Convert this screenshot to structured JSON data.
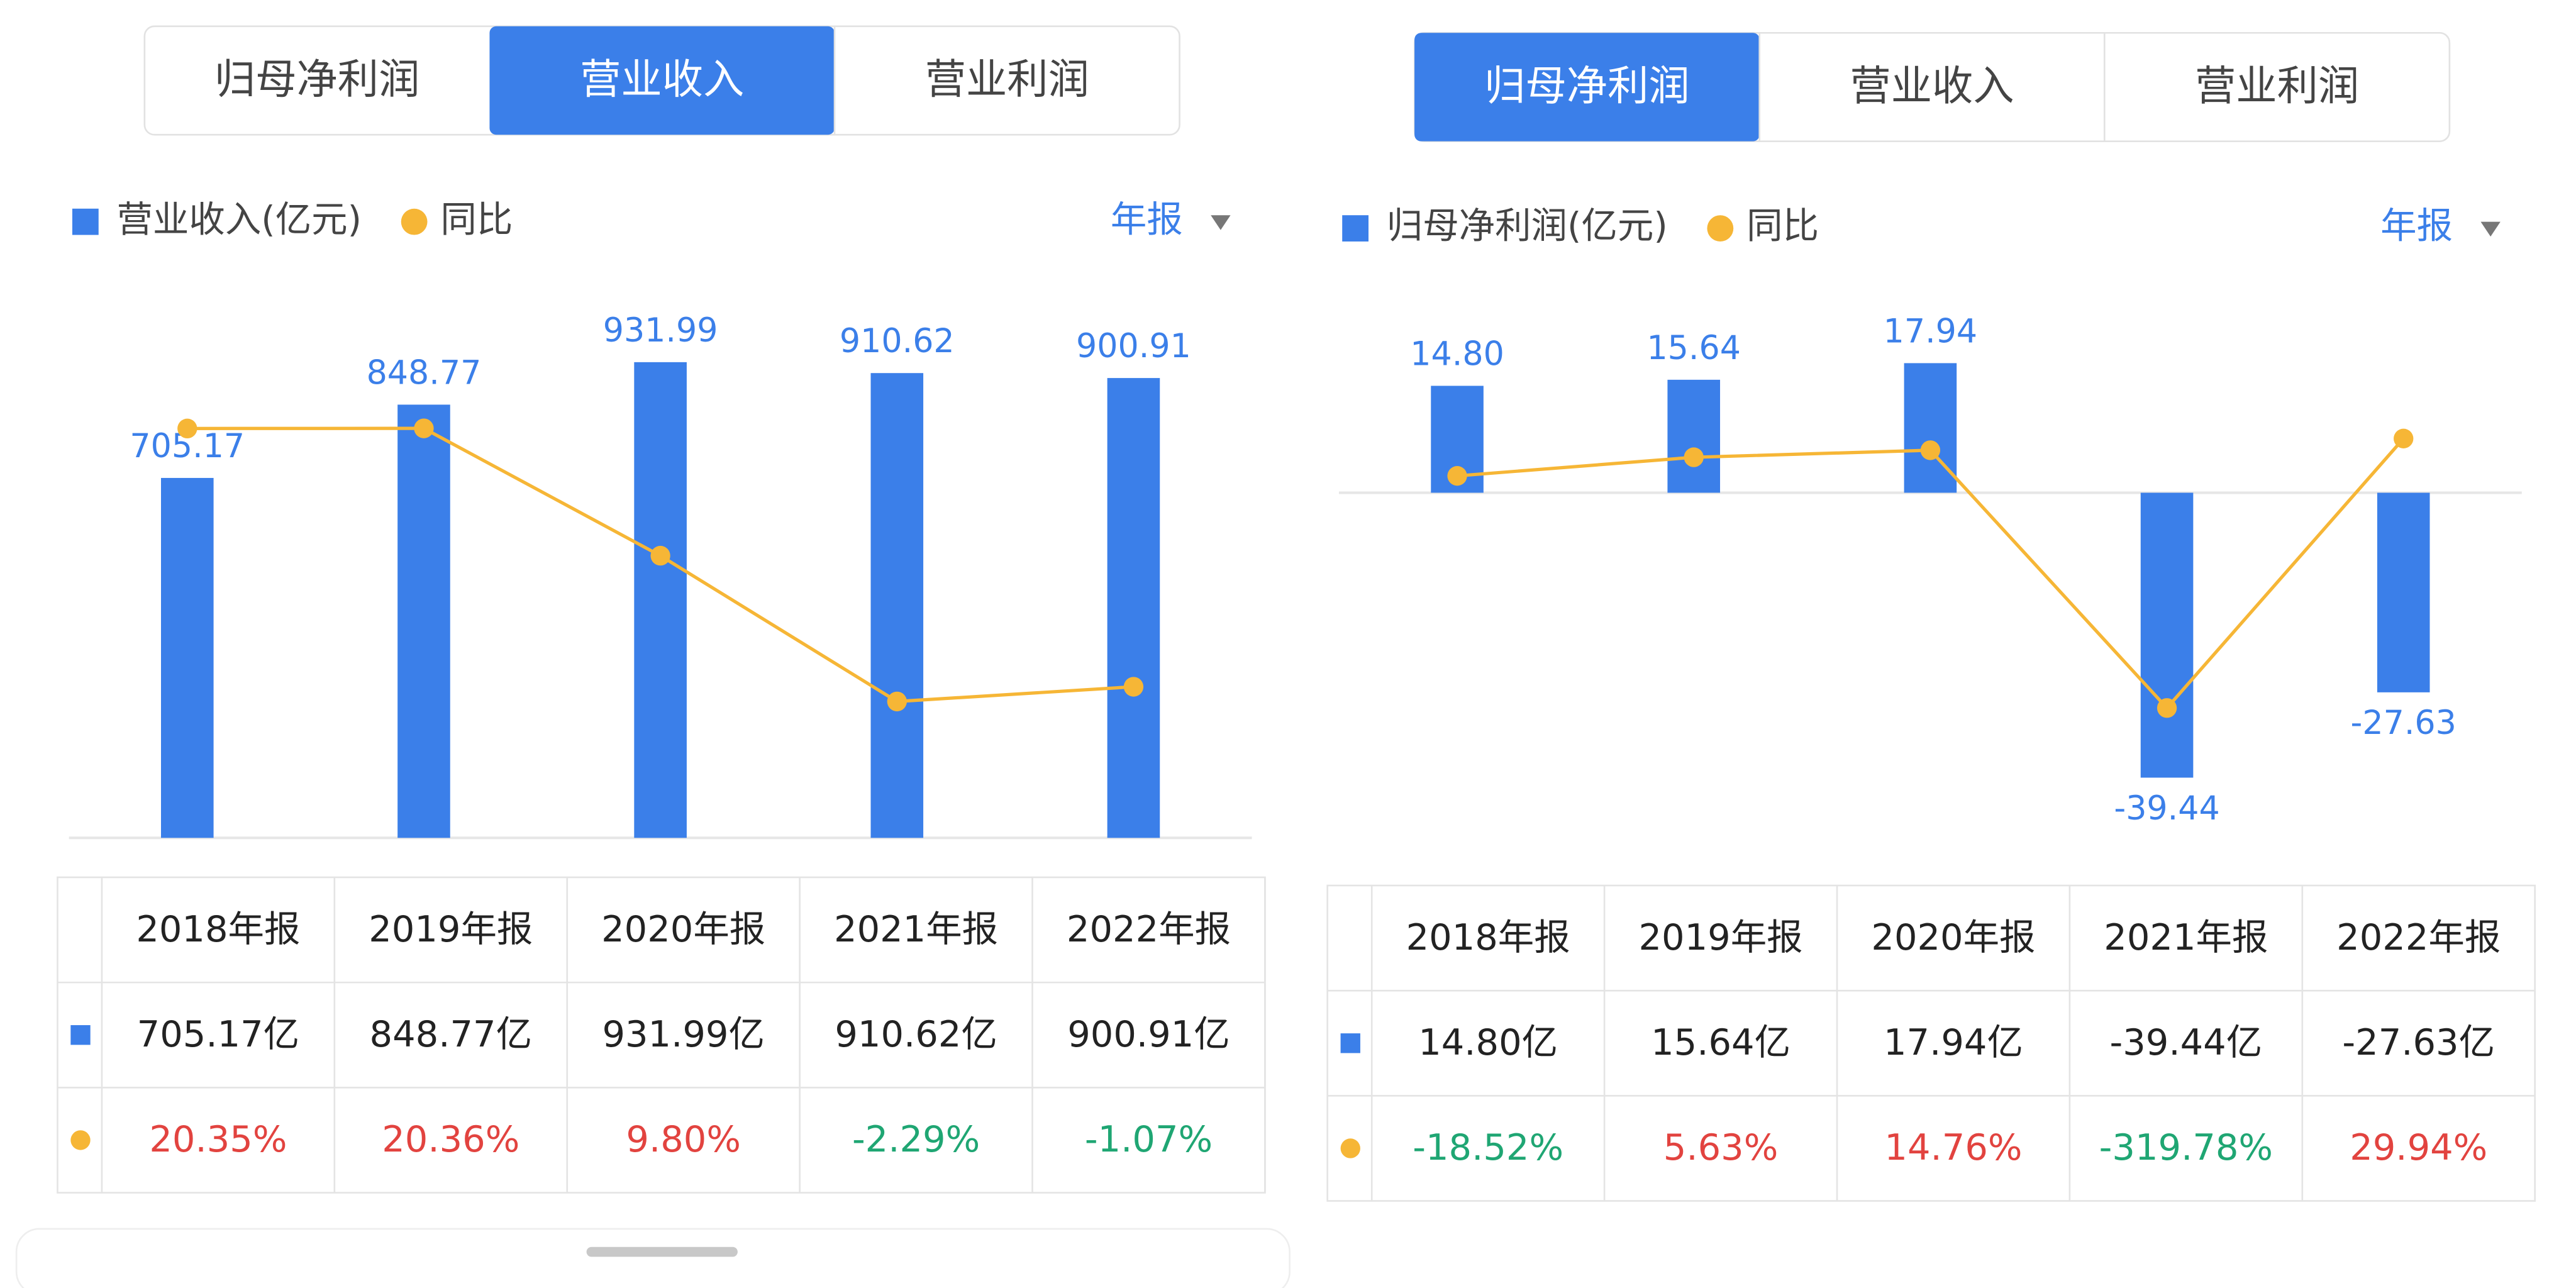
{
  "chart_data": [
    {
      "type": "bar",
      "categories": [
        "2018年报",
        "2019年报",
        "2020年报",
        "2021年报",
        "2022年报"
      ],
      "ylim": [
        0,
        1030
      ],
      "y2lim": [
        -13.6,
        30
      ],
      "series": [
        {
          "name": "营业收入(亿元)",
          "color": "#3b7fe9",
          "values": [
            705.17,
            848.77,
            931.99,
            910.62,
            900.91
          ]
        },
        {
          "name": "同比",
          "type": "line",
          "axis": "y2",
          "color": "#f6b636",
          "values": [
            20.35,
            20.36,
            9.8,
            -2.29,
            -1.07
          ]
        }
      ]
    },
    {
      "type": "bar",
      "categories": [
        "2018年报",
        "2019年报",
        "2020年报",
        "2021年报",
        "2022年报"
      ],
      "ylim": [
        -45.5,
        25
      ],
      "y2lim": [
        -467,
        194
      ],
      "series": [
        {
          "name": "归母净利润(亿元)",
          "color": "#3b7fe9",
          "values": [
            14.8,
            15.64,
            17.94,
            -39.44,
            -27.63
          ],
          "value_labels": [
            "14.80",
            "15.64",
            "17.94",
            "-39.44",
            "-27.63"
          ]
        },
        {
          "name": "同比",
          "type": "line",
          "axis": "y2",
          "color": "#f6b636",
          "values": [
            -18.52,
            5.63,
            14.76,
            -319.78,
            29.94
          ]
        }
      ]
    }
  ],
  "panels": [
    {
      "tabs": [
        "归母净利润",
        "营业收入",
        "营业利润"
      ],
      "active_tab": 1,
      "period": "年报",
      "table": {
        "rows": [
          [
            "705.17亿",
            "848.77亿",
            "931.99亿",
            "910.62亿",
            "900.91亿"
          ],
          [
            "20.35%",
            "20.36%",
            "9.80%",
            "-2.29%",
            "-1.07%"
          ]
        ]
      }
    },
    {
      "tabs": [
        "归母净利润",
        "营业收入",
        "营业利润"
      ],
      "active_tab": 0,
      "period": "年报",
      "table": {
        "rows": [
          [
            "14.80亿",
            "15.64亿",
            "17.94亿",
            "-39.44亿",
            "-27.63亿"
          ],
          [
            "-18.52%",
            "5.63%",
            "14.76%",
            "-319.78%",
            "29.94%"
          ]
        ]
      }
    }
  ]
}
